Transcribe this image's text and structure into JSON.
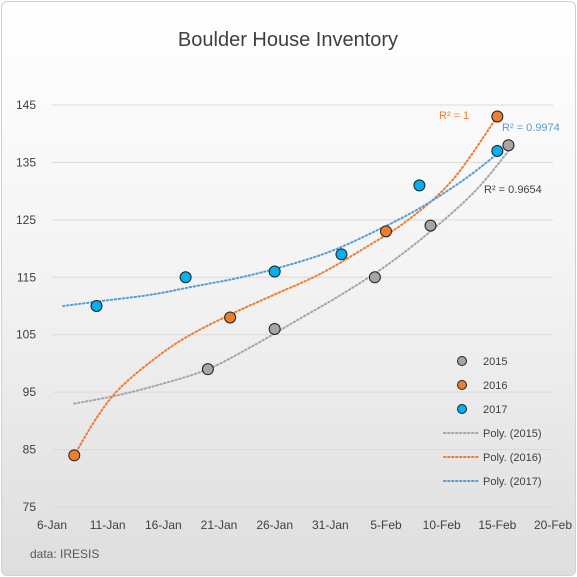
{
  "chart_data": {
    "type": "scatter",
    "title": "Boulder House Inventory",
    "xlabel": "",
    "ylabel": "",
    "source": "data: IRESIS",
    "x_axis": {
      "type": "date",
      "min": "2017-01-06",
      "max": "2017-02-20",
      "ticks": [
        "6-Jan",
        "11-Jan",
        "16-Jan",
        "21-Jan",
        "26-Jan",
        "31-Jan",
        "5-Feb",
        "10-Feb",
        "15-Feb",
        "20-Feb"
      ]
    },
    "y_axis": {
      "min": 75,
      "max": 145,
      "ticks": [
        "75",
        "85",
        "95",
        "105",
        "115",
        "125",
        "135",
        "145"
      ]
    },
    "grid": "horizontal",
    "legend": "right",
    "series": [
      {
        "name": "2015",
        "color": "#a5a5a5",
        "points": [
          {
            "x": "2017-01-20",
            "y": 99
          },
          {
            "x": "2017-01-26",
            "y": 106
          },
          {
            "x": "2017-02-04",
            "y": 115
          },
          {
            "x": "2017-02-09",
            "y": 124
          },
          {
            "x": "2017-02-16",
            "y": 138
          }
        ]
      },
      {
        "name": "2016",
        "color": "#ed7d31",
        "points": [
          {
            "x": "2017-01-08",
            "y": 84
          },
          {
            "x": "2017-01-22",
            "y": 108
          },
          {
            "x": "2017-02-05",
            "y": 123
          },
          {
            "x": "2017-02-15",
            "y": 143
          }
        ]
      },
      {
        "name": "2017",
        "color": "#00b0f0",
        "points": [
          {
            "x": "2017-01-10",
            "y": 110
          },
          {
            "x": "2017-01-18",
            "y": 115
          },
          {
            "x": "2017-01-26",
            "y": 116
          },
          {
            "x": "2017-02-01",
            "y": 119
          },
          {
            "x": "2017-02-08",
            "y": 131
          },
          {
            "x": "2017-02-15",
            "y": 137
          }
        ]
      }
    ],
    "trendlines": [
      {
        "name": "Poly. (2015)",
        "color": "#a5a5a5",
        "series": "2015",
        "r2_label": "R² = 0.9654",
        "curve": [
          {
            "x": "2017-01-08",
            "y": 93
          },
          {
            "x": "2017-01-12",
            "y": 94.5
          },
          {
            "x": "2017-01-16",
            "y": 96.5
          },
          {
            "x": "2017-01-20",
            "y": 99
          },
          {
            "x": "2017-01-24",
            "y": 103
          },
          {
            "x": "2017-01-28",
            "y": 107.5
          },
          {
            "x": "2017-02-01",
            "y": 112
          },
          {
            "x": "2017-02-05",
            "y": 117
          },
          {
            "x": "2017-02-09",
            "y": 123
          },
          {
            "x": "2017-02-13",
            "y": 130
          },
          {
            "x": "2017-02-16",
            "y": 137
          }
        ]
      },
      {
        "name": "Poly. (2016)",
        "color": "#ed7d31",
        "series": "2016",
        "r2_label": "R² = 1",
        "curve": [
          {
            "x": "2017-01-08",
            "y": 84
          },
          {
            "x": "2017-01-10",
            "y": 90.5
          },
          {
            "x": "2017-01-12",
            "y": 95.5
          },
          {
            "x": "2017-01-15",
            "y": 100.5
          },
          {
            "x": "2017-01-18",
            "y": 104.5
          },
          {
            "x": "2017-01-22",
            "y": 108.5
          },
          {
            "x": "2017-01-26",
            "y": 112
          },
          {
            "x": "2017-01-30",
            "y": 115.5
          },
          {
            "x": "2017-02-03",
            "y": 120
          },
          {
            "x": "2017-02-07",
            "y": 125
          },
          {
            "x": "2017-02-11",
            "y": 132
          },
          {
            "x": "2017-02-15",
            "y": 143
          }
        ]
      },
      {
        "name": "Poly. (2017)",
        "color": "#5b9bd5",
        "series": "2017",
        "r2_label": "R² = 0.9974",
        "curve": [
          {
            "x": "2017-01-07",
            "y": 110
          },
          {
            "x": "2017-01-11",
            "y": 111
          },
          {
            "x": "2017-01-15",
            "y": 112
          },
          {
            "x": "2017-01-19",
            "y": 113.5
          },
          {
            "x": "2017-01-23",
            "y": 115
          },
          {
            "x": "2017-01-27",
            "y": 117
          },
          {
            "x": "2017-01-31",
            "y": 119.5
          },
          {
            "x": "2017-02-04",
            "y": 123
          },
          {
            "x": "2017-02-08",
            "y": 127
          },
          {
            "x": "2017-02-12",
            "y": 132
          },
          {
            "x": "2017-02-15",
            "y": 136.5
          }
        ]
      }
    ]
  }
}
